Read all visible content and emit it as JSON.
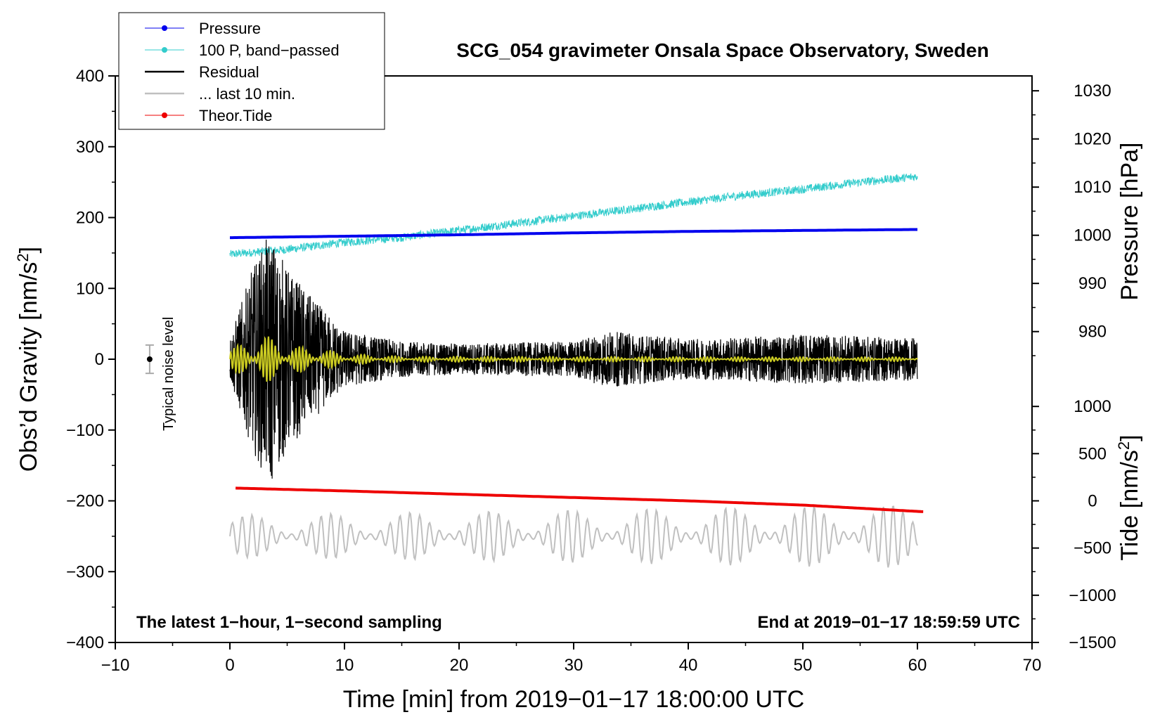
{
  "chart_data": {
    "type": "line",
    "title": "SCG_054 gravimeter Onsala Space Observatory, Sweden",
    "xlabel": "Time [min] from 2019−01−17 18:00:00 UTC",
    "ylabel_left": "Obs’d Gravity [nm/s",
    "ylabel_pressure": "Pressure [hPa]",
    "ylabel_tide": "Tide [nm/s",
    "unit_sup": "2",
    "unit_close": "]",
    "xlim": [
      -10,
      70
    ],
    "ylim_left": [
      -400,
      400
    ],
    "x_ticks": [
      "−10",
      "0",
      "10",
      "20",
      "30",
      "40",
      "50",
      "60",
      "70"
    ],
    "x_tick_values": [
      -10,
      0,
      10,
      20,
      30,
      40,
      50,
      60,
      70
    ],
    "y_left_ticks": [
      "400",
      "300",
      "200",
      "100",
      "0",
      "−100",
      "−200",
      "−300",
      "−400"
    ],
    "y_left_tick_values": [
      400,
      300,
      200,
      100,
      0,
      -100,
      -200,
      -300,
      -400
    ],
    "pressure_axis": {
      "ticks": [
        "1030",
        "1020",
        "1010",
        "1000",
        "990",
        "980"
      ],
      "tick_values": [
        1030,
        1020,
        1010,
        1000,
        990,
        980
      ],
      "left_equivalent_at_1000": 175,
      "left_units_per_hpa": 6.8
    },
    "tide_axis": {
      "ticks": [
        "1000",
        "500",
        "0",
        "−500",
        "−1000",
        "−1500"
      ],
      "tick_values": [
        1000,
        500,
        0,
        -500,
        -1000,
        -1500
      ],
      "left_equivalent_at_0": -200,
      "left_units_per_nms2": 0.1333
    },
    "series": [
      {
        "name": "Pressure",
        "axis": "pressure",
        "color": "#0000ee",
        "x": [
          0,
          10,
          20,
          30,
          40,
          50,
          60
        ],
        "values": [
          999.5,
          999.8,
          1000.1,
          1000.5,
          1000.8,
          1001.0,
          1001.2
        ]
      },
      {
        "name": "100 P, band−passed",
        "axis": "left",
        "color": "#33cccc",
        "x": [
          0,
          5,
          10,
          15,
          20,
          25,
          30,
          35,
          40,
          45,
          50,
          55,
          60
        ],
        "values": [
          148,
          155,
          165,
          172,
          182,
          192,
          202,
          212,
          222,
          232,
          240,
          250,
          258
        ]
      },
      {
        "name": "Residual",
        "axis": "left",
        "color": "#000000",
        "x": [
          0,
          2,
          3.5,
          5,
          7,
          10,
          15,
          20,
          30,
          33,
          40,
          50,
          60
        ],
        "values": [
          0,
          0,
          0,
          0,
          0,
          0,
          0,
          0,
          0,
          0,
          0,
          0,
          0
        ],
        "envelope": [
          30,
          130,
          180,
          130,
          90,
          40,
          25,
          22,
          25,
          40,
          28,
          35,
          30
        ]
      },
      {
        "name": "... last 10 min.",
        "axis": "left",
        "color": "#c0c0c0",
        "x": [
          0,
          60
        ],
        "values": [
          -250,
          -250
        ],
        "envelope": [
          30,
          45
        ]
      },
      {
        "name": "Theor.Tide",
        "axis": "tide",
        "color": "#ee0000",
        "x": [
          0.5,
          10,
          20,
          30,
          40,
          50,
          60.5
        ],
        "values": [
          135,
          105,
          70,
          35,
          0,
          -45,
          -115
        ]
      },
      {
        "name": "band−passed residual",
        "axis": "left",
        "color": "#cccc22",
        "in_legend": false,
        "x": [
          0,
          3,
          5,
          8,
          10,
          15,
          60
        ],
        "values": [
          0,
          0,
          0,
          0,
          0,
          0,
          0
        ],
        "envelope": [
          15,
          35,
          20,
          15,
          8,
          4,
          3
        ]
      }
    ],
    "legend": {
      "position": "top-left",
      "entries": [
        "Pressure",
        "100 P, band−passed",
        "Residual",
        "... last 10 min.",
        "Theor.Tide"
      ],
      "colors": [
        "#0000ee",
        "#33cccc",
        "#000000",
        "#c0c0c0",
        "#ee0000"
      ],
      "markers": [
        true,
        true,
        false,
        false,
        true
      ]
    },
    "noise_level": {
      "label": "Typical noise level",
      "x": -7,
      "value": 0,
      "error": 20
    },
    "annotations": {
      "left": "The latest 1−hour, 1−second sampling",
      "right": "End at 2019−01−17 18:59:59 UTC"
    }
  }
}
